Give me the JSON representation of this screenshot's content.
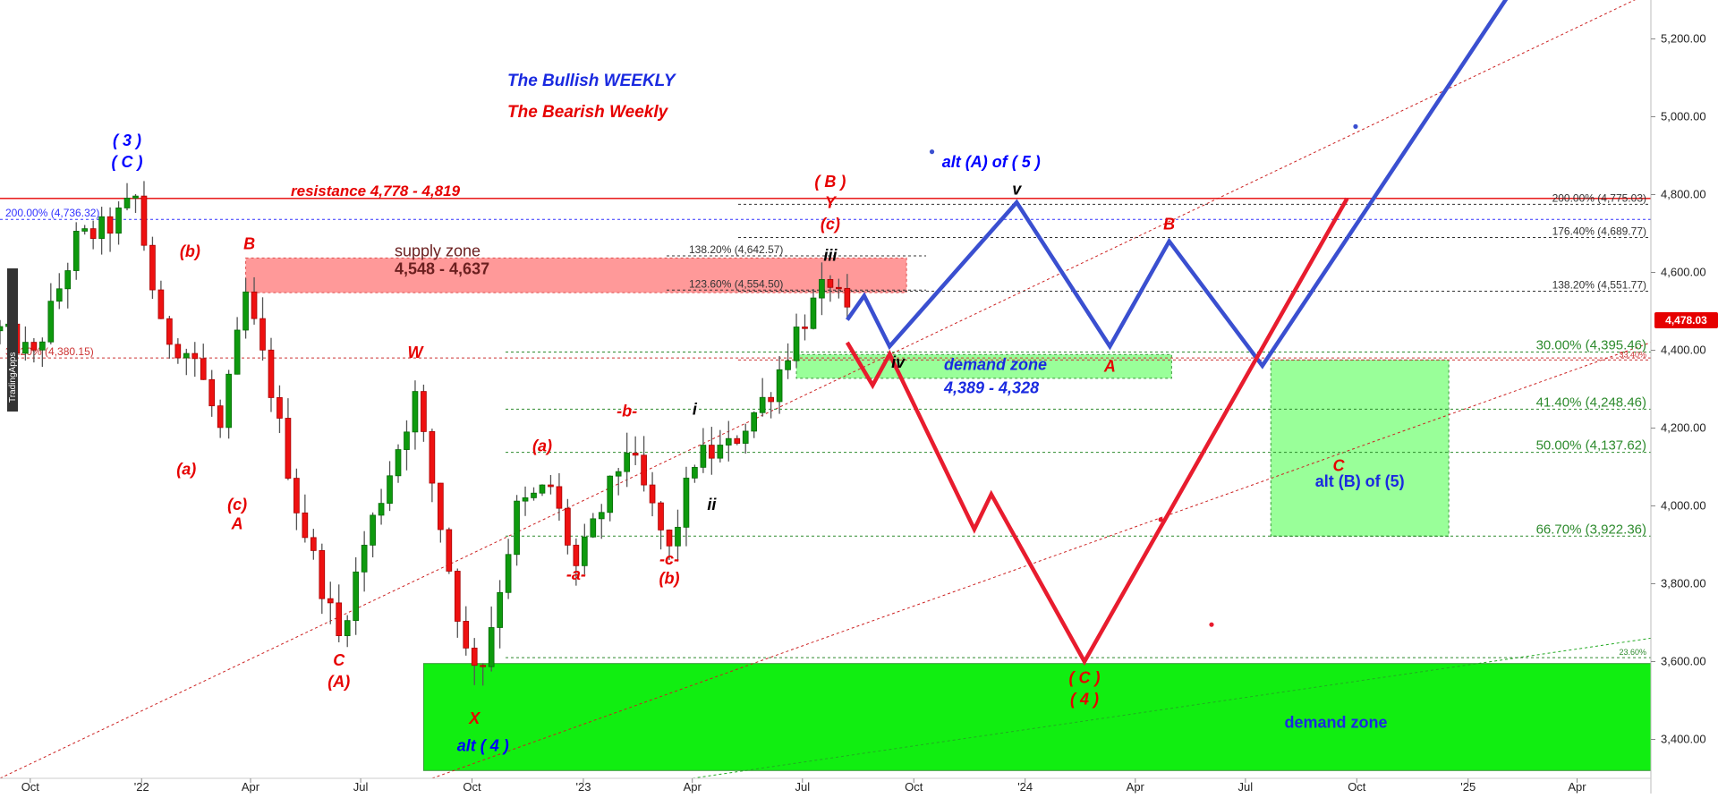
{
  "chart_data": {
    "type": "candlestick",
    "title": "The Bullish WEEKLY",
    "subtitle": "The Bearish Weekly",
    "watermark": "TradingApps",
    "y_axis": {
      "ylim": [
        3300,
        5300
      ],
      "ticks": [
        3400,
        3600,
        3800,
        4000,
        4200,
        4400,
        4600,
        4800,
        5000,
        5200
      ],
      "tick_labels": [
        "3,400.00",
        "3,600.00",
        "3,800.00",
        "4,000.00",
        "4,200.00",
        "4,400.00",
        "4,600.00",
        "4,800.00",
        "5,000.00",
        "5,200.00"
      ],
      "position": "right"
    },
    "x_axis": {
      "range": [
        "2021-09-06",
        "2025-06-01"
      ],
      "ticks": [
        {
          "date": "2021-10-01",
          "label": "Oct"
        },
        {
          "date": "2022-01-01",
          "label": "'22"
        },
        {
          "date": "2022-04-01",
          "label": "Apr"
        },
        {
          "date": "2022-07-01",
          "label": "Jul"
        },
        {
          "date": "2022-10-01",
          "label": "Oct"
        },
        {
          "date": "2023-01-01",
          "label": "'23"
        },
        {
          "date": "2023-04-01",
          "label": "Apr"
        },
        {
          "date": "2023-07-01",
          "label": "Jul"
        },
        {
          "date": "2023-10-01",
          "label": "Oct"
        },
        {
          "date": "2024-01-01",
          "label": "'24"
        },
        {
          "date": "2024-04-01",
          "label": "Apr"
        },
        {
          "date": "2024-07-01",
          "label": "Jul"
        },
        {
          "date": "2024-10-01",
          "label": "Oct"
        },
        {
          "date": "2025-01-01",
          "label": "'25"
        },
        {
          "date": "2025-04-01",
          "label": "Apr"
        }
      ]
    },
    "last_price": {
      "label": "4,478.03",
      "value": 4478.03
    },
    "price_anchors": [
      [
        "2021-09-06",
        4450
      ],
      [
        "2021-10-04",
        4380
      ],
      [
        "2021-11-08",
        4680
      ],
      [
        "2021-12-06",
        4720
      ],
      [
        "2021-12-27",
        4790
      ],
      [
        "2022-01-17",
        4450
      ],
      [
        "2022-02-14",
        4380
      ],
      [
        "2022-03-07",
        4190
      ],
      [
        "2022-03-28",
        4540
      ],
      [
        "2022-04-18",
        4300
      ],
      [
        "2022-05-09",
        4000
      ],
      [
        "2022-06-13",
        3660
      ],
      [
        "2022-07-04",
        3900
      ],
      [
        "2022-08-15",
        4280
      ],
      [
        "2022-09-05",
        3950
      ],
      [
        "2022-09-26",
        3620
      ],
      [
        "2022-10-10",
        3600
      ],
      [
        "2022-11-07",
        3990
      ],
      [
        "2022-12-05",
        4050
      ],
      [
        "2022-12-26",
        3840
      ],
      [
        "2023-01-16",
        3990
      ],
      [
        "2023-02-06",
        4150
      ],
      [
        "2023-03-13",
        3880
      ],
      [
        "2023-04-03",
        4120
      ],
      [
        "2023-05-01",
        4150
      ],
      [
        "2023-06-05",
        4300
      ],
      [
        "2023-06-26",
        4450
      ],
      [
        "2023-07-24",
        4580
      ],
      [
        "2023-08-07",
        4478
      ]
    ],
    "horizontal_levels": [
      {
        "label": "200.00% (4,736.32)",
        "value": 4736.32,
        "color": "#3333ff",
        "side": "left"
      },
      {
        "label": "resistance 4,778 - 4,819",
        "value": 4790,
        "color": "#e60000",
        "side": "left"
      },
      {
        "label": "38.20% (4,380.15)",
        "value": 4380.15,
        "color": "#cc3333",
        "side": "left"
      },
      {
        "label": "200.00% (4,775.03)",
        "value": 4775.03,
        "color": "#333333",
        "side": "right"
      },
      {
        "label": "176.40% (4,689.77)",
        "value": 4689.77,
        "color": "#333333",
        "side": "right"
      },
      {
        "label": "138.20% (4,642.57)",
        "value": 4642.57,
        "color": "#333333",
        "side": "mid"
      },
      {
        "label": "123.60% (4,554.50)",
        "value": 4554.5,
        "color": "#333333",
        "side": "mid"
      },
      {
        "label": "138.20% (4,551.77)",
        "value": 4551.77,
        "color": "#333333",
        "side": "right"
      },
      {
        "label": "30.00% (4,395.46)",
        "value": 4395.46,
        "color": "#2e8b2e",
        "side": "right"
      },
      {
        "label": "33.40%",
        "value": 4375,
        "color": "#cc3333",
        "side": "right"
      },
      {
        "label": "41.40% (4,248.46)",
        "value": 4248.46,
        "color": "#2e8b2e",
        "side": "right"
      },
      {
        "label": "50.00% (4,137.62)",
        "value": 4137.62,
        "color": "#2e8b2e",
        "side": "right"
      },
      {
        "label": "66.70% (3,922.36)",
        "value": 3922.36,
        "color": "#2e8b2e",
        "side": "right"
      },
      {
        "label": "23.60%",
        "value": 3610,
        "color": "#2e8b2e",
        "side": "right"
      }
    ],
    "zones": [
      {
        "name": "supply-zone",
        "label": "supply zone",
        "range_label": "4,548 - 4,637",
        "x_from": "2022-03-28",
        "x_to": "2023-09-25",
        "y_from": 4548,
        "y_to": 4637,
        "color": "#ff9999"
      },
      {
        "name": "demand-zone-mid",
        "label": "demand zone",
        "range_label": "4,389 - 4,328",
        "x_from": "2023-06-26",
        "x_to": "2024-05-01",
        "y_from": 4328,
        "y_to": 4389,
        "color": "#99ff99"
      },
      {
        "name": "alt-b-zone",
        "label": "alt (B) of (5)",
        "range_label": "",
        "x_from": "2024-07-22",
        "x_to": "2024-12-16",
        "y_from": 3922,
        "y_to": 4375,
        "color": "#99ff99"
      },
      {
        "name": "demand-zone-low",
        "label": "demand zone",
        "range_label": "",
        "x_from": "2022-08-22",
        "x_to": "2025-06-01",
        "y_from": 3320,
        "y_to": 3595,
        "color": "#11ee11"
      }
    ],
    "projections": [
      {
        "name": "bullish-path",
        "color": "#3a4fd0",
        "points": [
          [
            "2023-08-07",
            4478
          ],
          [
            "2023-08-21",
            4540
          ],
          [
            "2023-09-11",
            4410
          ],
          [
            "2023-12-25",
            4780
          ],
          [
            "2024-03-11",
            4410
          ],
          [
            "2024-04-29",
            4680
          ],
          [
            "2024-07-15",
            4360
          ],
          [
            "2025-02-03",
            5310
          ]
        ]
      },
      {
        "name": "bearish-path",
        "color": "#e81c2e",
        "points": [
          [
            "2023-08-07",
            4420
          ],
          [
            "2023-08-28",
            4310
          ],
          [
            "2023-09-11",
            4390
          ],
          [
            "2023-11-20",
            3940
          ],
          [
            "2023-12-04",
            4030
          ],
          [
            "2024-02-19",
            3600
          ],
          [
            "2024-09-23",
            4790
          ]
        ]
      }
    ],
    "trend_lines": [
      {
        "from": [
          "2021-09-06",
          3300
        ],
        "to": [
          "2025-06-01",
          5320
        ],
        "color": "#cc2222"
      },
      {
        "from": [
          "2022-08-29",
          3300
        ],
        "to": [
          "2025-06-01",
          4420
        ],
        "color": "#cc2222"
      },
      {
        "from": [
          "2023-04-01",
          3300
        ],
        "to": [
          "2025-06-01",
          3660
        ],
        "color": "#22aa22"
      }
    ],
    "annotations": [
      {
        "text": "( 3 )",
        "date": "2021-12-20",
        "price": 4925,
        "color": "#0000ff"
      },
      {
        "text": "( C )",
        "date": "2021-12-20",
        "price": 4870,
        "color": "#0000ff"
      },
      {
        "text": "(b)",
        "date": "2022-02-10",
        "price": 4640,
        "color": "#e60000"
      },
      {
        "text": "B",
        "date": "2022-03-31",
        "price": 4660,
        "color": "#e60000"
      },
      {
        "text": "(a)",
        "date": "2022-02-07",
        "price": 4080,
        "color": "#e60000"
      },
      {
        "text": "(c)",
        "date": "2022-03-21",
        "price": 3990,
        "color": "#e60000"
      },
      {
        "text": "A",
        "date": "2022-03-21",
        "price": 3940,
        "color": "#e60000"
      },
      {
        "text": "W",
        "date": "2022-08-15",
        "price": 4380,
        "color": "#e60000"
      },
      {
        "text": "C",
        "date": "2022-06-13",
        "price": 3590,
        "color": "#e60000"
      },
      {
        "text": "(A)",
        "date": "2022-06-13",
        "price": 3535,
        "color": "#e60000"
      },
      {
        "text": "X",
        "date": "2022-10-03",
        "price": 3440,
        "color": "#e60000"
      },
      {
        "text": "alt ( 4 )",
        "date": "2022-10-10",
        "price": 3370,
        "color": "#0000ff"
      },
      {
        "text": "(a)",
        "date": "2022-11-28",
        "price": 4140,
        "color": "#e60000"
      },
      {
        "text": "-a-",
        "date": "2022-12-26",
        "price": 3810,
        "color": "#e60000"
      },
      {
        "text": "-b-",
        "date": "2023-02-06",
        "price": 4230,
        "color": "#e60000"
      },
      {
        "text": "-c-",
        "date": "2023-03-13",
        "price": 3850,
        "color": "#e60000"
      },
      {
        "text": "(b)",
        "date": "2023-03-13",
        "price": 3800,
        "color": "#e60000"
      },
      {
        "text": "i",
        "date": "2023-04-03",
        "price": 4235,
        "color": "#000000"
      },
      {
        "text": "ii",
        "date": "2023-04-17",
        "price": 3990,
        "color": "#000000"
      },
      {
        "text": "iii",
        "date": "2023-07-24",
        "price": 4630,
        "color": "#000000"
      },
      {
        "text": "(c)",
        "date": "2023-07-24",
        "price": 4710,
        "color": "#e60000"
      },
      {
        "text": "Y",
        "date": "2023-07-24",
        "price": 4765,
        "color": "#e60000"
      },
      {
        "text": "( B )",
        "date": "2023-07-24",
        "price": 4820,
        "color": "#e60000"
      },
      {
        "text": "iv",
        "date": "2023-09-18",
        "price": 4355,
        "color": "#000000"
      },
      {
        "text": "alt (A) of ( 5 )",
        "date": "2023-12-04",
        "price": 4870,
        "color": "#0000ff"
      },
      {
        "text": "v",
        "date": "2023-12-25",
        "price": 4800,
        "color": "#000000"
      },
      {
        "text": "A",
        "date": "2024-03-11",
        "price": 4345,
        "color": "#e60000"
      },
      {
        "text": "B",
        "date": "2024-04-29",
        "price": 4710,
        "color": "#e60000"
      },
      {
        "text": "C",
        "date": "2024-09-16",
        "price": 4090,
        "color": "#e60000"
      },
      {
        "text": "( C )",
        "date": "2024-02-19",
        "price": 3545,
        "color": "#e60000"
      },
      {
        "text": "( 4 )",
        "date": "2024-02-19",
        "price": 3490,
        "color": "#e60000"
      }
    ],
    "scatter_dots": [
      {
        "date": "2023-10-16",
        "price": 4910,
        "color": "#3a4fd0"
      },
      {
        "date": "2024-09-30",
        "price": 4975,
        "color": "#3a4fd0"
      },
      {
        "date": "2024-04-22",
        "price": 3965,
        "color": "#e81c2e"
      },
      {
        "date": "2024-06-03",
        "price": 3695,
        "color": "#e81c2e"
      }
    ]
  }
}
